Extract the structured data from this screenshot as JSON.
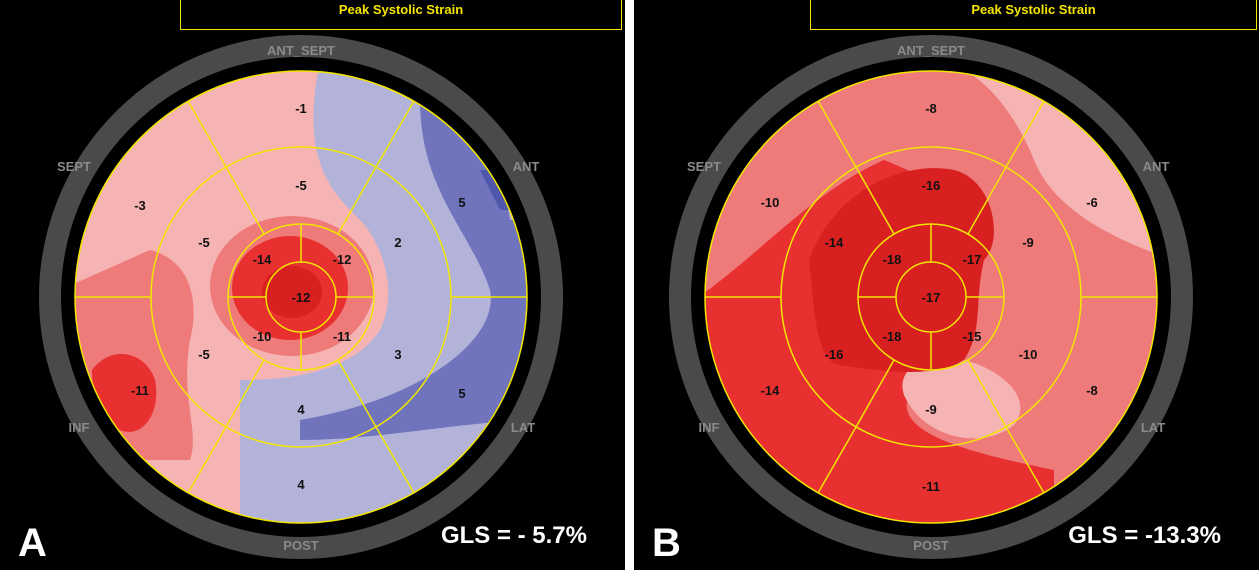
{
  "title": "Peak Systolic Strain",
  "regions": [
    "ANT_SEPT",
    "ANT",
    "LAT",
    "POST",
    "INF",
    "SEPT"
  ],
  "colors": {
    "background": "#000000",
    "grid_lines": "#f2e600",
    "ring": "#4a4a4a",
    "strain_light_pink": "#f6b3b3",
    "strain_pink": "#ee7a7a",
    "strain_red": "#e83030",
    "strain_dark_red": "#d82020",
    "strain_lavender": "#b3b3d9",
    "strain_blue": "#6f74bd"
  },
  "panels": [
    {
      "letter": "A",
      "gls": "GLS = - 5.7%",
      "segments": {
        "basal": [
          "-1",
          "5",
          "5",
          "4",
          "-11",
          "-3"
        ],
        "mid": [
          "-5",
          "2",
          "3",
          "4",
          "-5",
          "-5"
        ],
        "apical": [
          "-12",
          "-11",
          "-10",
          "-14"
        ],
        "apex": "-12"
      }
    },
    {
      "letter": "B",
      "gls": "GLS = -13.3%",
      "segments": {
        "basal": [
          "-8",
          "-6",
          "-8",
          "-11",
          "-14",
          "-10"
        ],
        "mid": [
          "-16",
          "-9",
          "-10",
          "-9",
          "-16",
          "-14"
        ],
        "apical": [
          "-17",
          "-15",
          "-18",
          "-18"
        ],
        "apex": "-17"
      }
    }
  ]
}
